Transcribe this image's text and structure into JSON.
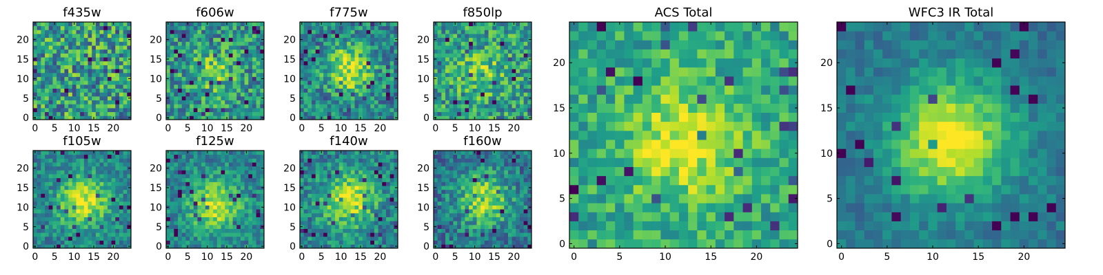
{
  "chart_data": [
    {
      "type": "heatmap",
      "title": "f435w",
      "xticks": [
        "0",
        "5",
        "10",
        "15",
        "20"
      ],
      "yticks": [
        "0",
        "5",
        "10",
        "15",
        "20"
      ],
      "xlim": [
        0,
        25
      ],
      "ylim": [
        0,
        25
      ],
      "size": 25,
      "colormap": "viridis",
      "center": [
        12.5,
        12.5
      ],
      "peak": 0.0,
      "noise": 0.55,
      "base": 0.55
    },
    {
      "type": "heatmap",
      "title": "f606w",
      "xticks": [
        "0",
        "5",
        "10",
        "15",
        "20"
      ],
      "yticks": [
        "0",
        "5",
        "10",
        "15",
        "20"
      ],
      "xlim": [
        0,
        25
      ],
      "ylim": [
        0,
        25
      ],
      "size": 25,
      "colormap": "viridis",
      "center": [
        12.5,
        12.0
      ],
      "peak": 0.25,
      "noise": 0.45,
      "base": 0.5
    },
    {
      "type": "heatmap",
      "title": "f775w",
      "xticks": [
        "0",
        "5",
        "10",
        "15",
        "20"
      ],
      "yticks": [
        "0",
        "5",
        "10",
        "15",
        "20"
      ],
      "xlim": [
        0,
        25
      ],
      "ylim": [
        0,
        25
      ],
      "size": 25,
      "colormap": "viridis",
      "center": [
        12.5,
        13.0
      ],
      "peak": 0.45,
      "noise": 0.4,
      "base": 0.45
    },
    {
      "type": "heatmap",
      "title": "f850lp",
      "xticks": [
        "0",
        "5",
        "10",
        "15",
        "20"
      ],
      "yticks": [
        "0",
        "5",
        "10",
        "15",
        "20"
      ],
      "xlim": [
        0,
        25
      ],
      "ylim": [
        0,
        25
      ],
      "size": 25,
      "colormap": "viridis",
      "center": [
        12.0,
        12.0
      ],
      "peak": 0.2,
      "noise": 0.45,
      "base": 0.55
    },
    {
      "type": "heatmap",
      "title": "f105w",
      "xticks": [
        "0",
        "5",
        "10",
        "15",
        "20"
      ],
      "yticks": [
        "0",
        "5",
        "10",
        "15",
        "20"
      ],
      "xlim": [
        0,
        25
      ],
      "ylim": [
        0,
        25
      ],
      "size": 25,
      "colormap": "viridis",
      "center": [
        13.0,
        12.0
      ],
      "peak": 0.5,
      "noise": 0.3,
      "base": 0.45
    },
    {
      "type": "heatmap",
      "title": "f125w",
      "xticks": [
        "0",
        "5",
        "10",
        "15",
        "20"
      ],
      "yticks": [
        "0",
        "5",
        "10",
        "15",
        "20"
      ],
      "xlim": [
        0,
        25
      ],
      "ylim": [
        0,
        25
      ],
      "size": 25,
      "colormap": "viridis",
      "center": [
        12.5,
        11.0
      ],
      "peak": 0.5,
      "noise": 0.3,
      "base": 0.45
    },
    {
      "type": "heatmap",
      "title": "f140w",
      "xticks": [
        "0",
        "5",
        "10",
        "15",
        "20"
      ],
      "yticks": [
        "0",
        "5",
        "10",
        "15",
        "20"
      ],
      "xlim": [
        0,
        25
      ],
      "ylim": [
        0,
        25
      ],
      "size": 25,
      "colormap": "viridis",
      "center": [
        12.5,
        12.5
      ],
      "peak": 0.5,
      "noise": 0.35,
      "base": 0.45
    },
    {
      "type": "heatmap",
      "title": "f160w",
      "xticks": [
        "0",
        "5",
        "10",
        "15",
        "20"
      ],
      "yticks": [
        "0",
        "5",
        "10",
        "15",
        "20"
      ],
      "xlim": [
        0,
        25
      ],
      "ylim": [
        0,
        25
      ],
      "size": 25,
      "colormap": "viridis",
      "center": [
        13.0,
        12.5
      ],
      "peak": 0.5,
      "noise": 0.35,
      "base": 0.4
    },
    {
      "type": "heatmap",
      "title": "ACS Total",
      "xticks": [
        "0",
        "5",
        "10",
        "15",
        "20"
      ],
      "yticks": [
        "0",
        "5",
        "10",
        "15",
        "20"
      ],
      "xlim": [
        0,
        25
      ],
      "ylim": [
        0,
        25
      ],
      "size": 25,
      "colormap": "viridis",
      "center": [
        12.5,
        11.5
      ],
      "peak": 0.35,
      "noise": 0.3,
      "base": 0.6
    },
    {
      "type": "heatmap",
      "title": "WFC3 IR Total",
      "xticks": [
        "0",
        "5",
        "10",
        "15",
        "20"
      ],
      "yticks": [
        "0",
        "5",
        "10",
        "15",
        "20"
      ],
      "xlim": [
        0,
        25
      ],
      "ylim": [
        0,
        25
      ],
      "size": 25,
      "colormap": "viridis",
      "center": [
        12.5,
        12.0
      ],
      "peak": 0.6,
      "noise": 0.18,
      "base": 0.4
    }
  ],
  "colors": {
    "viridis": [
      "#440154",
      "#482878",
      "#3e4989",
      "#31688e",
      "#26828e",
      "#1f9e89",
      "#35b779",
      "#6ece58",
      "#b5de2b",
      "#fde725"
    ],
    "axes": "#000000",
    "background": "#ffffff"
  }
}
